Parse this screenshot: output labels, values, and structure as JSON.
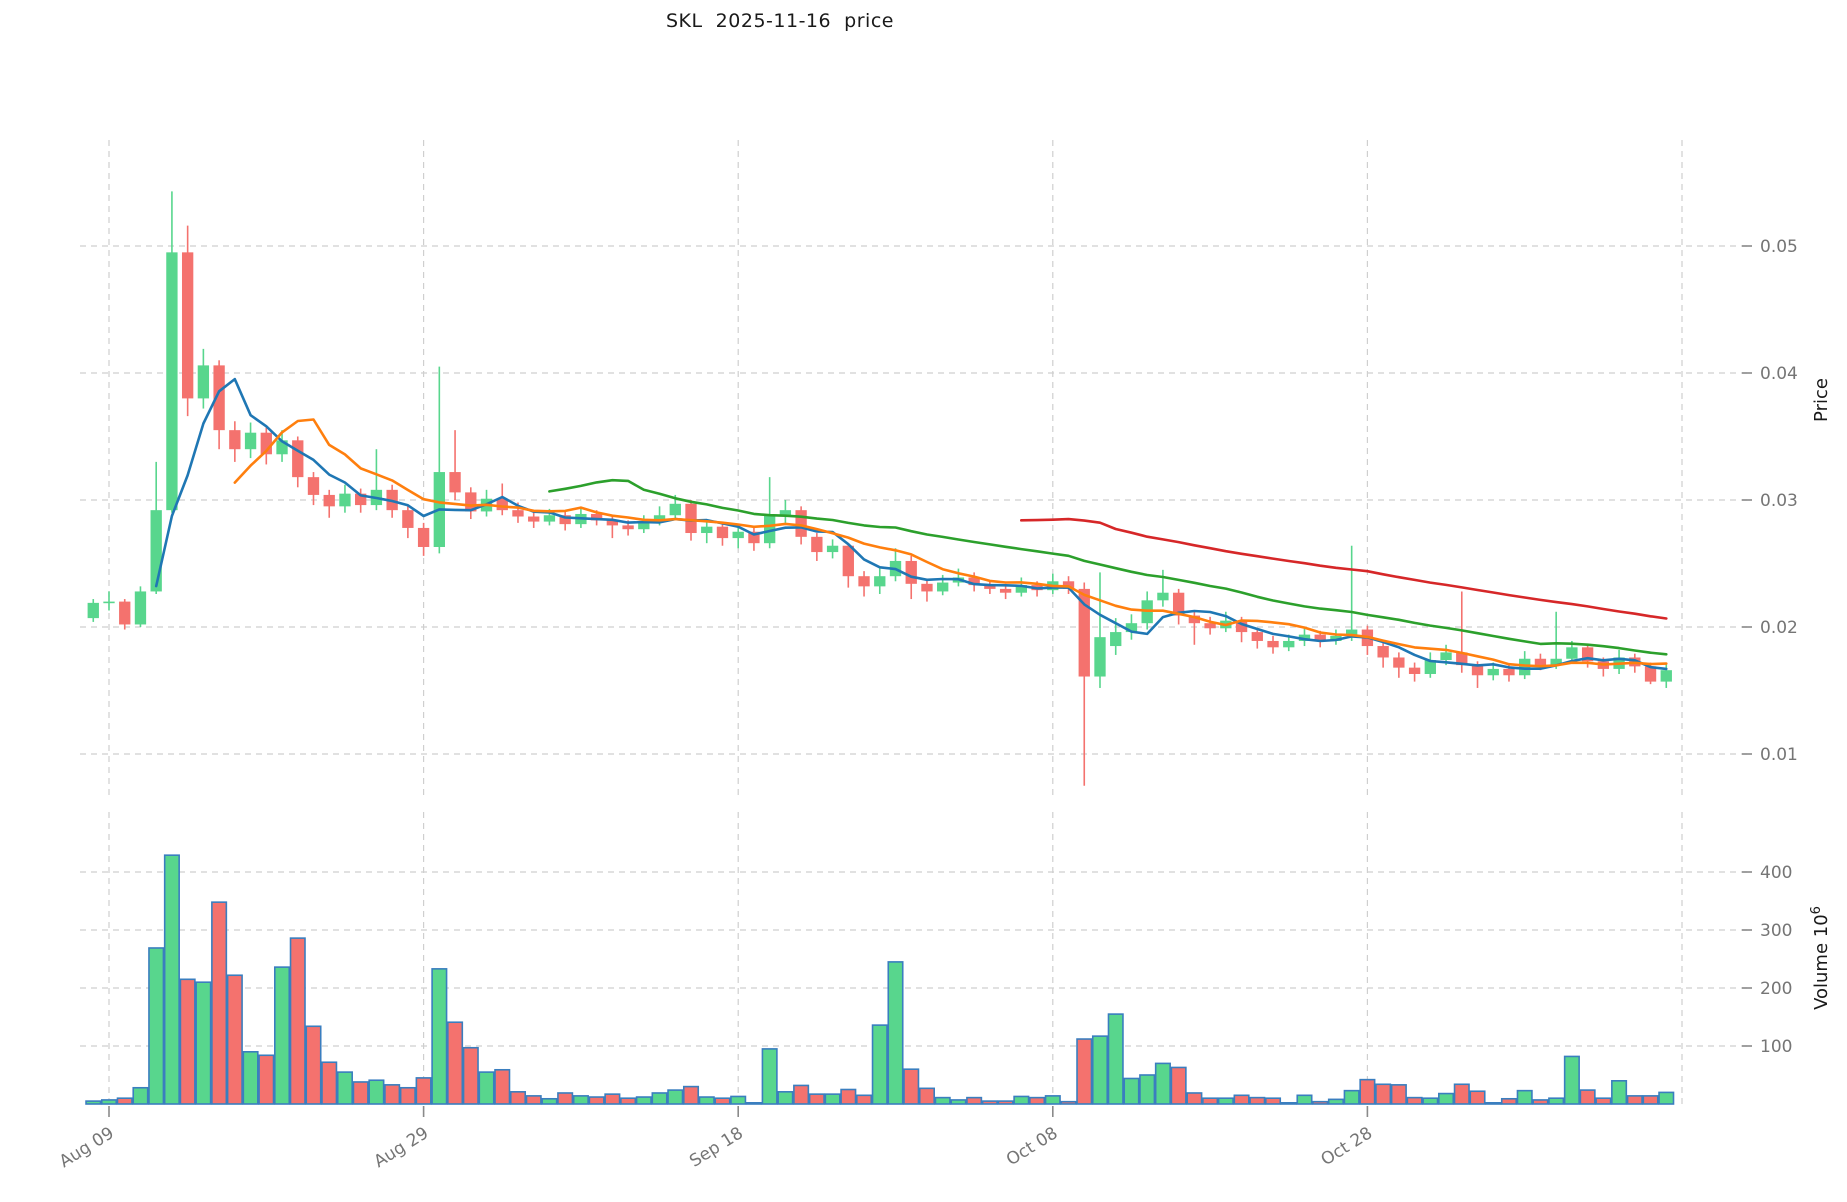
{
  "title": "SKL  2025-11-16  price",
  "axes": {
    "price_label": "Price",
    "volume_label": "Volume",
    "volume_label_exp": "10",
    "volume_label_sup": "6",
    "price_ticks": [
      0.01,
      0.02,
      0.03,
      0.04,
      0.05
    ],
    "volume_ticks": [
      100,
      200,
      300,
      400
    ],
    "x_ticks": [
      "Aug 09",
      "Aug 29",
      "Sep 18",
      "Oct 08",
      "Oct 28"
    ],
    "x_tick_indices": [
      1,
      21,
      41,
      61,
      81
    ],
    "extra_gridline_index": 101,
    "price_ylim": [
      0.0063,
      0.0584
    ],
    "volume_ylim": [
      0,
      507
    ],
    "grid": true
  },
  "style": {
    "up_color": "#58d68d",
    "down_color": "#f4726e",
    "volume_edge_color": "#3a7ebf",
    "grid_color": "#cfcfcf",
    "tick_text_color": "#757575",
    "title_color": "#1a1a1a",
    "ma_colors": [
      "#1f77b4",
      "#ff7f0e",
      "#2ca02c",
      "#d62728"
    ]
  },
  "chart_data": {
    "type": "candlestick",
    "title": "SKL  2025-11-16  price",
    "ylabel": "Price",
    "ylabel_lower": "Volume 10^6",
    "moving_averages": [
      {
        "name": "SMA5",
        "window": 5,
        "color": "#1f77b4"
      },
      {
        "name": "SMA10",
        "window": 10,
        "color": "#ff7f0e"
      },
      {
        "name": "SMA30",
        "window": 30,
        "color": "#2ca02c"
      },
      {
        "name": "SMA60",
        "window": 60,
        "color": "#d62728"
      }
    ],
    "columns": [
      "date",
      "open",
      "high",
      "low",
      "close",
      "volume_millions"
    ],
    "ohlcv": [
      [
        "2025-08-08",
        0.0207,
        0.0222,
        0.0204,
        0.0219,
        5
      ],
      [
        "2025-08-09",
        0.0219,
        0.0228,
        0.0213,
        0.022,
        7
      ],
      [
        "2025-08-10",
        0.022,
        0.0222,
        0.0198,
        0.0202,
        10
      ],
      [
        "2025-08-11",
        0.0202,
        0.0232,
        0.02,
        0.0228,
        28
      ],
      [
        "2025-08-12",
        0.0228,
        0.033,
        0.0226,
        0.0292,
        269
      ],
      [
        "2025-08-13",
        0.0292,
        0.0543,
        0.029,
        0.0495,
        429
      ],
      [
        "2025-08-14",
        0.0495,
        0.0516,
        0.0366,
        0.038,
        215
      ],
      [
        "2025-08-15",
        0.038,
        0.0419,
        0.0372,
        0.0406,
        210
      ],
      [
        "2025-08-16",
        0.0406,
        0.041,
        0.034,
        0.0355,
        348
      ],
      [
        "2025-08-17",
        0.0355,
        0.0362,
        0.033,
        0.034,
        222
      ],
      [
        "2025-08-18",
        0.034,
        0.0361,
        0.0333,
        0.0353,
        90
      ],
      [
        "2025-08-19",
        0.0353,
        0.0357,
        0.0328,
        0.0336,
        84
      ],
      [
        "2025-08-20",
        0.0336,
        0.0355,
        0.033,
        0.0347,
        236
      ],
      [
        "2025-08-21",
        0.0347,
        0.035,
        0.031,
        0.0318,
        286
      ],
      [
        "2025-08-22",
        0.0318,
        0.0322,
        0.0296,
        0.0304,
        134
      ],
      [
        "2025-08-23",
        0.0304,
        0.0308,
        0.0286,
        0.0295,
        72
      ],
      [
        "2025-08-24",
        0.0295,
        0.0312,
        0.029,
        0.0305,
        55
      ],
      [
        "2025-08-25",
        0.0305,
        0.0309,
        0.029,
        0.0296,
        38
      ],
      [
        "2025-08-26",
        0.0296,
        0.034,
        0.0292,
        0.0308,
        41
      ],
      [
        "2025-08-27",
        0.0308,
        0.0312,
        0.0286,
        0.0292,
        33
      ],
      [
        "2025-08-28",
        0.0292,
        0.0296,
        0.027,
        0.0278,
        28
      ],
      [
        "2025-08-29",
        0.0278,
        0.0282,
        0.0256,
        0.0263,
        45
      ],
      [
        "2025-08-30",
        0.0263,
        0.0405,
        0.0258,
        0.0322,
        233
      ],
      [
        "2025-08-31",
        0.0322,
        0.0355,
        0.03,
        0.0306,
        141
      ],
      [
        "2025-09-01",
        0.0306,
        0.031,
        0.0285,
        0.0291,
        97
      ],
      [
        "2025-09-02",
        0.0291,
        0.0308,
        0.0287,
        0.0301,
        55
      ],
      [
        "2025-09-03",
        0.0301,
        0.0313,
        0.0288,
        0.0292,
        59
      ],
      [
        "2025-09-04",
        0.0292,
        0.0298,
        0.0282,
        0.0287,
        21
      ],
      [
        "2025-09-05",
        0.0287,
        0.0291,
        0.0278,
        0.0283,
        14
      ],
      [
        "2025-09-06",
        0.0283,
        0.0293,
        0.028,
        0.0288,
        9
      ],
      [
        "2025-09-07",
        0.0288,
        0.0291,
        0.0276,
        0.0281,
        19
      ],
      [
        "2025-09-08",
        0.0281,
        0.0294,
        0.0278,
        0.0289,
        14
      ],
      [
        "2025-09-09",
        0.0289,
        0.0292,
        0.028,
        0.0284,
        12
      ],
      [
        "2025-09-10",
        0.0284,
        0.0288,
        0.027,
        0.028,
        17
      ],
      [
        "2025-09-11",
        0.028,
        0.0284,
        0.0272,
        0.0277,
        10
      ],
      [
        "2025-09-12",
        0.0277,
        0.0288,
        0.0274,
        0.0283,
        12
      ],
      [
        "2025-09-13",
        0.0283,
        0.0295,
        0.028,
        0.0288,
        19
      ],
      [
        "2025-09-14",
        0.0288,
        0.0304,
        0.0285,
        0.0297,
        24
      ],
      [
        "2025-09-15",
        0.0297,
        0.03,
        0.0268,
        0.0274,
        30
      ],
      [
        "2025-09-16",
        0.0274,
        0.0284,
        0.0266,
        0.0279,
        12
      ],
      [
        "2025-09-17",
        0.0279,
        0.0282,
        0.0264,
        0.027,
        10
      ],
      [
        "2025-09-18",
        0.027,
        0.0281,
        0.0262,
        0.0275,
        13
      ],
      [
        "2025-09-19",
        0.0275,
        0.0278,
        0.026,
        0.0266,
        2
      ],
      [
        "2025-09-20",
        0.0266,
        0.0318,
        0.0262,
        0.0288,
        95
      ],
      [
        "2025-09-21",
        0.0288,
        0.03,
        0.0282,
        0.0292,
        21
      ],
      [
        "2025-09-22",
        0.0292,
        0.0295,
        0.0265,
        0.0271,
        32
      ],
      [
        "2025-09-23",
        0.0271,
        0.0274,
        0.0252,
        0.0259,
        17
      ],
      [
        "2025-09-24",
        0.0259,
        0.0269,
        0.0254,
        0.0264,
        17
      ],
      [
        "2025-09-25",
        0.0264,
        0.0266,
        0.0231,
        0.024,
        25
      ],
      [
        "2025-09-26",
        0.024,
        0.0244,
        0.0224,
        0.0232,
        15
      ],
      [
        "2025-09-27",
        0.0232,
        0.0246,
        0.0226,
        0.024,
        136
      ],
      [
        "2025-09-28",
        0.024,
        0.0262,
        0.0236,
        0.0252,
        245
      ],
      [
        "2025-09-29",
        0.0252,
        0.0256,
        0.0222,
        0.0234,
        60
      ],
      [
        "2025-09-30",
        0.0234,
        0.0238,
        0.022,
        0.0228,
        27
      ],
      [
        "2025-10-01",
        0.0228,
        0.0241,
        0.0225,
        0.0235,
        11
      ],
      [
        "2025-10-02",
        0.0235,
        0.0246,
        0.0232,
        0.0239,
        7
      ],
      [
        "2025-10-03",
        0.0239,
        0.0243,
        0.0228,
        0.0233,
        11
      ],
      [
        "2025-10-04",
        0.0233,
        0.0237,
        0.0226,
        0.023,
        5
      ],
      [
        "2025-10-05",
        0.023,
        0.0234,
        0.0222,
        0.0227,
        5
      ],
      [
        "2025-10-06",
        0.0227,
        0.0239,
        0.0224,
        0.0233,
        13
      ],
      [
        "2025-10-07",
        0.0233,
        0.0236,
        0.0224,
        0.0229,
        11
      ],
      [
        "2025-10-08",
        0.0229,
        0.0242,
        0.0226,
        0.0236,
        14
      ],
      [
        "2025-10-09",
        0.0236,
        0.024,
        0.0226,
        0.023,
        4
      ],
      [
        "2025-10-10",
        0.023,
        0.0235,
        0.0075,
        0.0161,
        112
      ],
      [
        "2025-10-11",
        0.0161,
        0.0243,
        0.0152,
        0.0192,
        117
      ],
      [
        "2025-10-12",
        0.0185,
        0.0207,
        0.0178,
        0.0196,
        155
      ],
      [
        "2025-10-13",
        0.0196,
        0.021,
        0.019,
        0.0203,
        44
      ],
      [
        "2025-10-14",
        0.0203,
        0.0228,
        0.0198,
        0.0221,
        50
      ],
      [
        "2025-10-15",
        0.0221,
        0.0245,
        0.0216,
        0.0227,
        70
      ],
      [
        "2025-10-16",
        0.0227,
        0.023,
        0.0202,
        0.0209,
        63
      ],
      [
        "2025-10-17",
        0.0209,
        0.0213,
        0.0186,
        0.0203,
        19
      ],
      [
        "2025-10-18",
        0.0203,
        0.0208,
        0.0194,
        0.0199,
        10
      ],
      [
        "2025-10-19",
        0.0199,
        0.0212,
        0.0196,
        0.0205,
        10
      ],
      [
        "2025-10-20",
        0.0205,
        0.0208,
        0.0188,
        0.0196,
        15
      ],
      [
        "2025-10-21",
        0.0196,
        0.0199,
        0.0183,
        0.0189,
        11
      ],
      [
        "2025-10-22",
        0.0189,
        0.0193,
        0.0179,
        0.0184,
        10
      ],
      [
        "2025-10-23",
        0.0184,
        0.0194,
        0.0181,
        0.0189,
        2
      ],
      [
        "2025-10-24",
        0.0189,
        0.0199,
        0.0185,
        0.0194,
        15
      ],
      [
        "2025-10-25",
        0.0194,
        0.0197,
        0.0184,
        0.0189,
        4
      ],
      [
        "2025-10-26",
        0.0189,
        0.0198,
        0.0186,
        0.0193,
        8
      ],
      [
        "2025-10-27",
        0.0193,
        0.0264,
        0.0189,
        0.0198,
        23
      ],
      [
        "2025-10-28",
        0.0198,
        0.0201,
        0.0178,
        0.0185,
        42
      ],
      [
        "2025-10-29",
        0.0185,
        0.0188,
        0.0168,
        0.0176,
        34
      ],
      [
        "2025-10-30",
        0.0176,
        0.018,
        0.016,
        0.0168,
        33
      ],
      [
        "2025-10-31",
        0.0168,
        0.0172,
        0.0157,
        0.0163,
        11
      ],
      [
        "2025-11-01",
        0.0163,
        0.018,
        0.016,
        0.0174,
        10
      ],
      [
        "2025-11-02",
        0.0174,
        0.0186,
        0.017,
        0.018,
        18
      ],
      [
        "2025-11-03",
        0.018,
        0.0228,
        0.0164,
        0.017,
        34
      ],
      [
        "2025-11-04",
        0.017,
        0.0173,
        0.0152,
        0.0162,
        22
      ],
      [
        "2025-11-05",
        0.0162,
        0.0172,
        0.0158,
        0.0167,
        2
      ],
      [
        "2025-11-06",
        0.0167,
        0.0171,
        0.0157,
        0.0162,
        9
      ],
      [
        "2025-11-07",
        0.0162,
        0.0181,
        0.0159,
        0.0175,
        23
      ],
      [
        "2025-11-08",
        0.0175,
        0.0179,
        0.0166,
        0.017,
        7
      ],
      [
        "2025-11-09",
        0.017,
        0.0212,
        0.0167,
        0.0175,
        10
      ],
      [
        "2025-11-10",
        0.0175,
        0.0189,
        0.0171,
        0.0184,
        82
      ],
      [
        "2025-11-11",
        0.0184,
        0.0186,
        0.0168,
        0.0173,
        24
      ],
      [
        "2025-11-12",
        0.0173,
        0.0176,
        0.0161,
        0.0167,
        10
      ],
      [
        "2025-11-13",
        0.0167,
        0.0182,
        0.0163,
        0.0176,
        40
      ],
      [
        "2025-11-14",
        0.0176,
        0.0179,
        0.0164,
        0.0169,
        14
      ],
      [
        "2025-11-15",
        0.0169,
        0.0172,
        0.0155,
        0.0157,
        14
      ],
      [
        "2025-11-16",
        0.0157,
        0.0171,
        0.0152,
        0.0166,
        20
      ]
    ]
  }
}
